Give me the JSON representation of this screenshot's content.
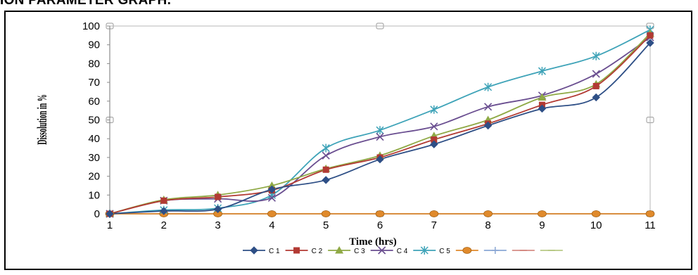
{
  "page": {
    "heading": "ION PARAMETER GRAPH."
  },
  "chart_data": {
    "type": "line",
    "title": "",
    "xlabel": "Time (hrs)",
    "ylabel": "Dissolution in %",
    "x": [
      1,
      2,
      3,
      4,
      5,
      6,
      7,
      8,
      9,
      10,
      11
    ],
    "xlim": [
      1,
      11
    ],
    "ylim": [
      0,
      100
    ],
    "yticks": [
      0,
      10,
      20,
      30,
      40,
      50,
      60,
      70,
      80,
      90,
      100
    ],
    "grid": false,
    "legend_position": "bottom",
    "series": [
      {
        "name": "C 1",
        "color": "#2e4f86",
        "marker": "diamond",
        "values": [
          0,
          1.5,
          2.5,
          13,
          18,
          29,
          37,
          47,
          56,
          62,
          91
        ]
      },
      {
        "name": "C 2",
        "color": "#b23a33",
        "marker": "square",
        "values": [
          0,
          7,
          9,
          12.5,
          23.5,
          30,
          39.5,
          48,
          58,
          68,
          95
        ]
      },
      {
        "name": "C 3",
        "color": "#8fa945",
        "marker": "triangle",
        "values": [
          0,
          7.5,
          10,
          15,
          24,
          31,
          41.5,
          50,
          62,
          69,
          96
        ]
      },
      {
        "name": "C 4",
        "color": "#6a4e90",
        "marker": "x",
        "values": [
          0,
          7,
          8,
          8.5,
          31,
          41,
          46.5,
          57,
          63,
          74.5,
          94
        ]
      },
      {
        "name": "C 5",
        "color": "#3ea3b8",
        "marker": "star",
        "values": [
          0,
          2,
          3,
          10,
          35,
          44.5,
          55.5,
          67.5,
          76,
          84,
          98
        ]
      },
      {
        "name": "",
        "color": "#e08a2c",
        "marker": "circle",
        "values": [
          0,
          0,
          0,
          0,
          0,
          0,
          0,
          0,
          0,
          0,
          0
        ]
      },
      {
        "name": "",
        "color": "#8aa7d4",
        "marker": "plus",
        "values": [
          0,
          0,
          0,
          0,
          0,
          0,
          0,
          0,
          0,
          0,
          0
        ]
      },
      {
        "name": "",
        "color": "#d58b84",
        "marker": "dash",
        "values": [
          0,
          0,
          0,
          0,
          0,
          0,
          0,
          0,
          0,
          0,
          0
        ]
      },
      {
        "name": "",
        "color": "#b8c986",
        "marker": "dash",
        "values": [
          0,
          0,
          0,
          0,
          0,
          0,
          0,
          0,
          0,
          0,
          0
        ]
      }
    ]
  }
}
